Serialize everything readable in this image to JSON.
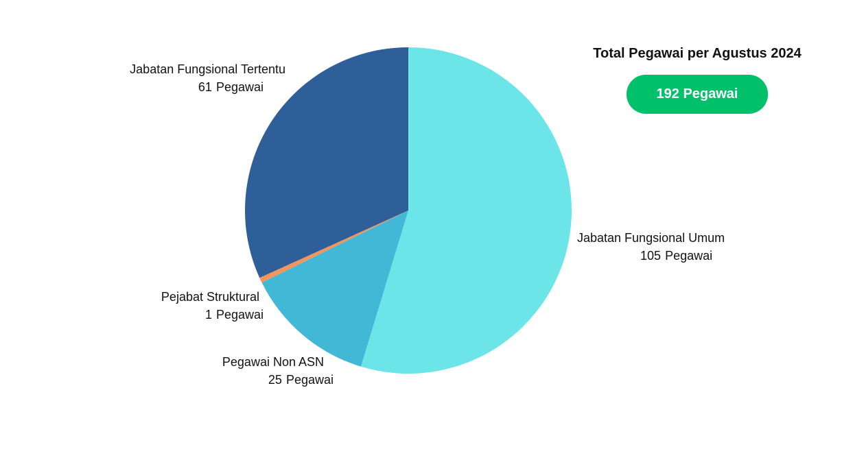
{
  "chart_data": {
    "type": "pie",
    "slices": [
      {
        "label": "Jabatan Fungsional Umum",
        "value": 105,
        "unit": "Pegawai",
        "color": "#6be5e8"
      },
      {
        "label": "Pegawai Non ASN",
        "value": 25,
        "unit": "Pegawai",
        "color": "#42b8d7"
      },
      {
        "label": "Pejabat Struktural",
        "value": 1,
        "unit": "Pegawai",
        "color": "#f5945b"
      },
      {
        "label": "Jabatan Fungsional Tertentu",
        "value": 61,
        "unit": "Pegawai",
        "color": "#2f5f98"
      }
    ],
    "start_angle": "12 o'clock",
    "direction": "clockwise"
  },
  "summary": {
    "title": "Total Pegawai per Agustus 2024",
    "total_label": "192 Pegawai",
    "badge_color": "#00c16a"
  }
}
